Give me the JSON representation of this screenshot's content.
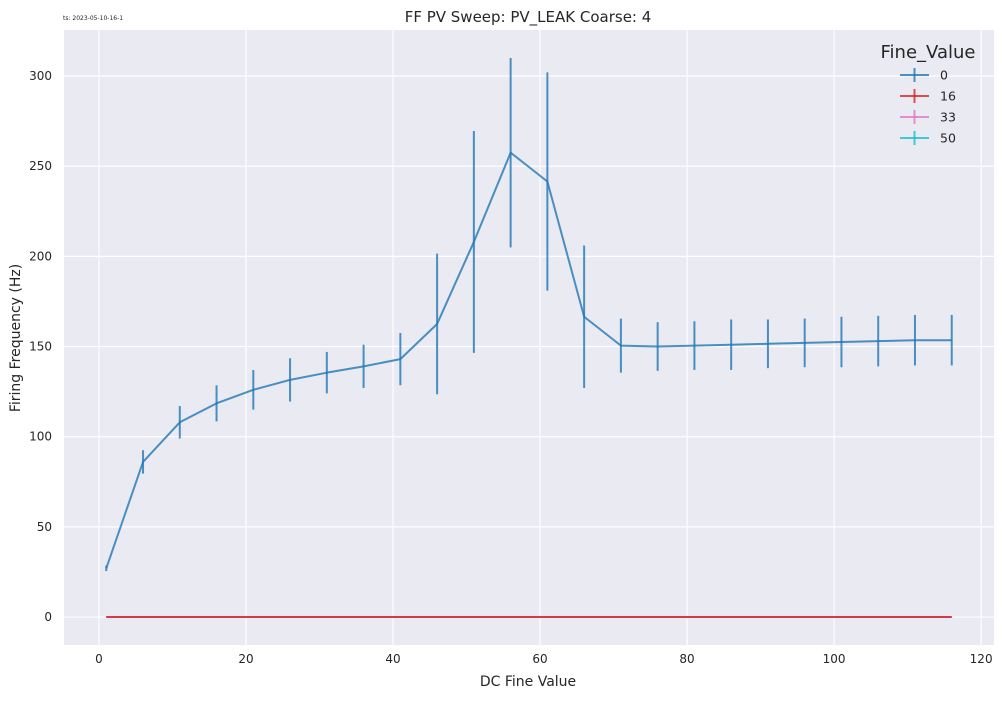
{
  "timestamp_label": "ts: 2023-05-10-16-1",
  "chart_data": {
    "type": "line",
    "title": "FF PV Sweep: PV_LEAK Coarse: 4",
    "xlabel": "DC Fine Value",
    "ylabel": "Firing Frequency (Hz)",
    "xlim": [
      -4.75,
      121.75
    ],
    "ylim": [
      -15.5,
      325.5
    ],
    "xticks": [
      0,
      20,
      40,
      60,
      80,
      100,
      120
    ],
    "yticks": [
      0,
      50,
      100,
      150,
      200,
      250,
      300
    ],
    "grid": true,
    "legend": {
      "title": "Fine_Value",
      "placement": "top-right",
      "entries": [
        "0",
        "16",
        "33",
        "50"
      ]
    },
    "series": [
      {
        "name": "0",
        "color": "#1f77b4",
        "x": [
          1,
          6,
          11,
          16,
          21,
          26,
          31,
          36,
          41,
          46,
          51,
          56,
          61,
          66,
          71,
          76,
          81,
          86,
          91,
          96,
          101,
          106,
          111,
          116
        ],
        "y": [
          27,
          86,
          108,
          118.5,
          126,
          131.5,
          135.5,
          139,
          143,
          162.5,
          208,
          257.5,
          241.5,
          166.5,
          150.5,
          150,
          150.5,
          151,
          151.5,
          152,
          152.5,
          153,
          153.5,
          153.5
        ],
        "yerr": [
          1.5,
          6.5,
          9,
          10,
          11,
          12,
          11.5,
          12,
          14.5,
          39,
          61.5,
          52.5,
          60.5,
          39.5,
          15,
          13.5,
          13.5,
          14,
          13.5,
          13.5,
          14,
          14,
          14,
          14
        ]
      },
      {
        "name": "16",
        "color": "#d62728",
        "x": [
          1,
          6,
          11,
          16,
          21,
          26,
          31,
          36,
          41,
          46,
          51,
          56,
          61,
          66,
          71,
          76,
          81,
          86,
          91,
          96,
          101,
          106,
          111,
          116
        ],
        "y": [
          0,
          0,
          0,
          0,
          0,
          0,
          0,
          0,
          0,
          0,
          0,
          0,
          0,
          0,
          0,
          0,
          0,
          0,
          0,
          0,
          0,
          0,
          0,
          0
        ]
      },
      {
        "name": "33",
        "color": "#e377c2",
        "x": [
          1,
          6,
          11,
          16,
          21,
          26,
          31,
          36,
          41,
          46,
          51,
          56,
          61,
          66,
          71,
          76,
          81,
          86,
          91,
          96,
          101,
          106,
          111,
          116
        ],
        "y": [
          0,
          0,
          0,
          0,
          0,
          0,
          0,
          0,
          0,
          0,
          0,
          0,
          0,
          0,
          0,
          0,
          0,
          0,
          0,
          0,
          0,
          0,
          0,
          0
        ]
      },
      {
        "name": "50",
        "color": "#17becf",
        "x": [
          1,
          6,
          11,
          16,
          21,
          26,
          31,
          36,
          41,
          46,
          51,
          56,
          61,
          66,
          71,
          76,
          81,
          86,
          91,
          96,
          101,
          106,
          111,
          116
        ],
        "y": [
          0,
          0,
          0,
          0,
          0,
          0,
          0,
          0,
          0,
          0,
          0,
          0,
          0,
          0,
          0,
          0,
          0,
          0,
          0,
          0,
          0,
          0,
          0,
          0
        ]
      }
    ]
  },
  "colors": {
    "plot_background": "#eaeaf2",
    "grid": "#ffffff"
  }
}
